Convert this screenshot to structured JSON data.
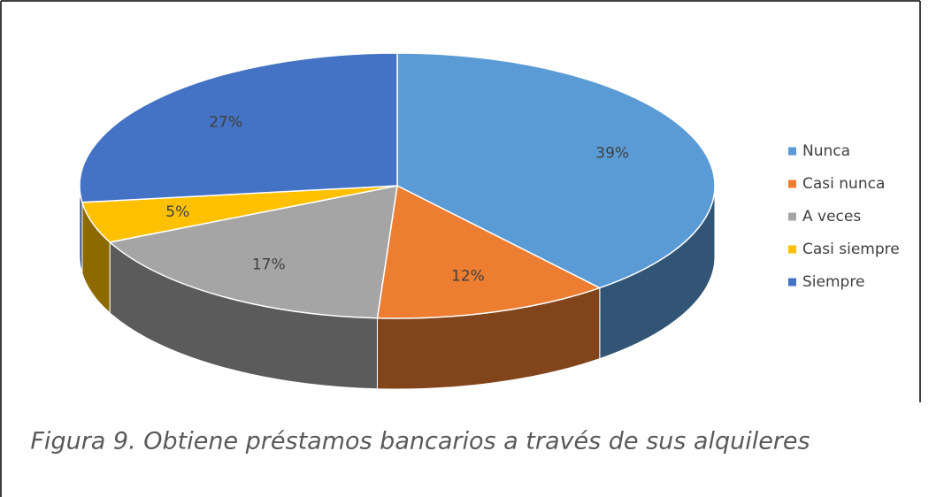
{
  "chart_data": {
    "type": "pie",
    "categories": [
      "Nunca",
      "Casi nunca",
      "A veces",
      "Casi siempre",
      "Siempre"
    ],
    "values": [
      39,
      12,
      17,
      5,
      27
    ],
    "value_labels": [
      "39%",
      "12%",
      "17%",
      "5%",
      "27%"
    ],
    "colors": [
      "#5b9bd5",
      "#ed7d31",
      "#a5a5a5",
      "#ffc000",
      "#4472c4"
    ],
    "legend": "right",
    "caption": "Figura 9. Obtiene préstamos bancarios a través de sus alquileres"
  }
}
